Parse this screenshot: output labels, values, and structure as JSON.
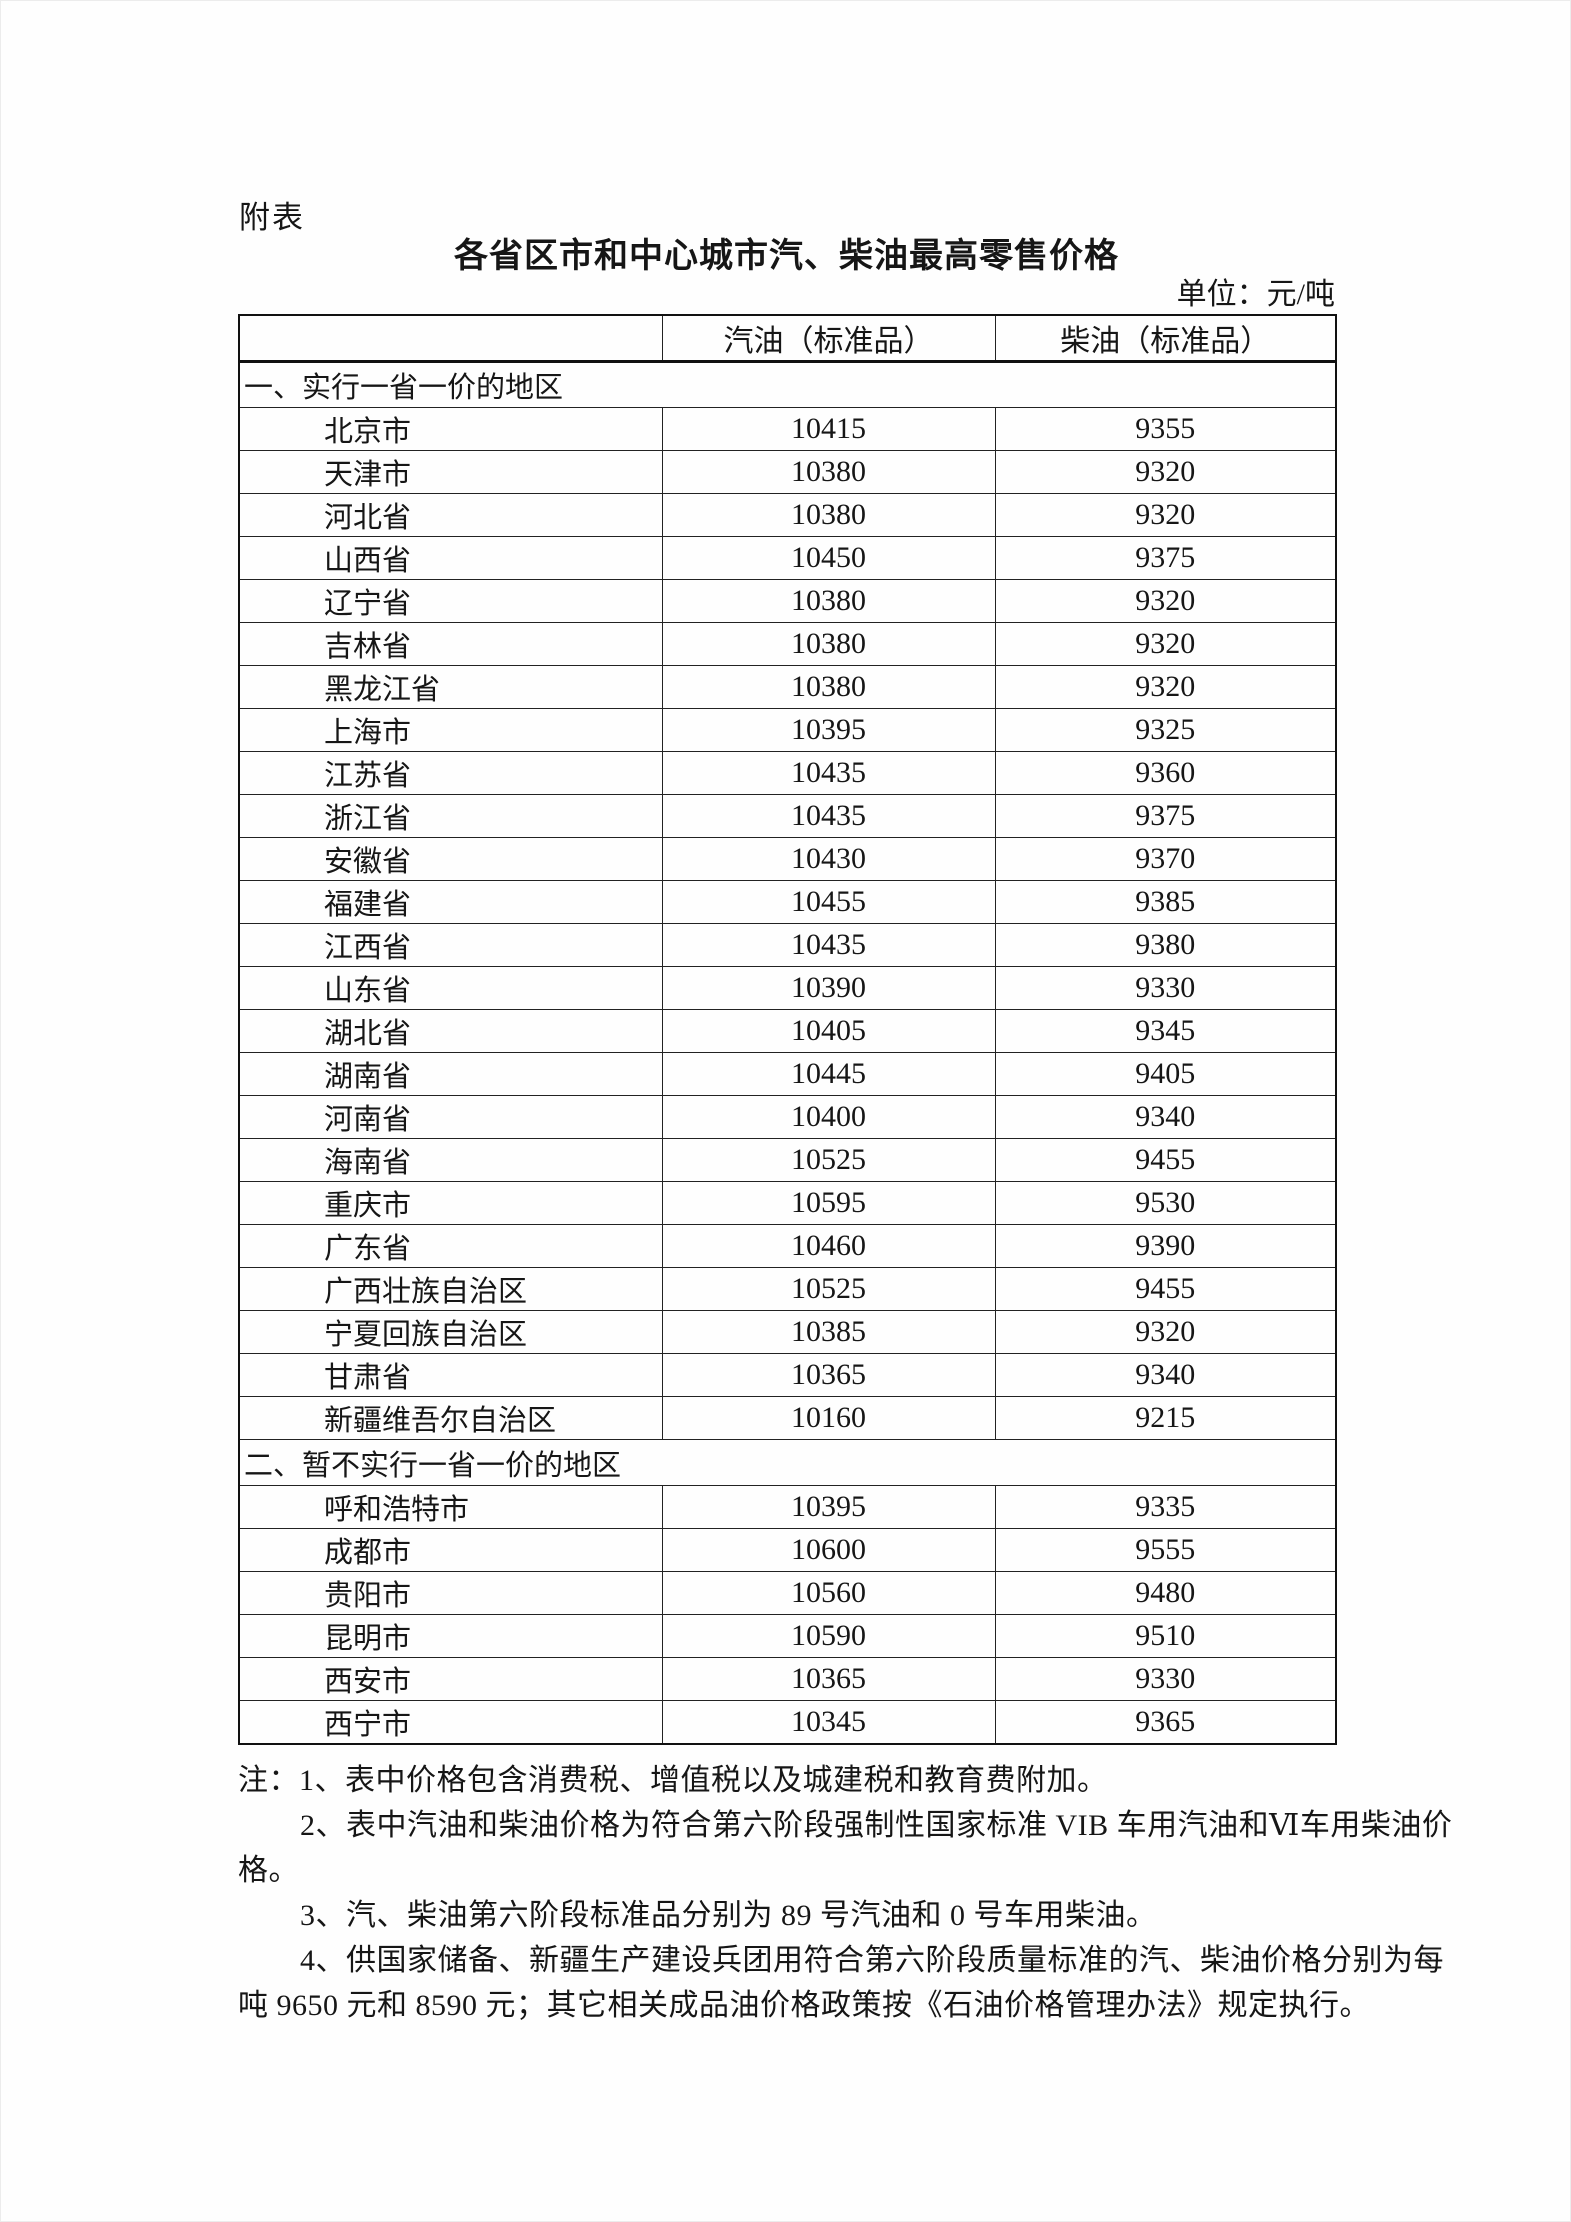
{
  "page": {
    "attachment_label": "附表",
    "title": "各省区市和中心城市汽、柴油最高零售价格",
    "unit_label": "单位：元/吨"
  },
  "table": {
    "columns": [
      "",
      "汽油（标准品）",
      "柴油（标准品）"
    ],
    "sections": [
      {
        "label": "一、实行一省一价的地区",
        "rows": [
          {
            "region": "北京市",
            "gasoline": 10415,
            "diesel": 9355
          },
          {
            "region": "天津市",
            "gasoline": 10380,
            "diesel": 9320
          },
          {
            "region": "河北省",
            "gasoline": 10380,
            "diesel": 9320
          },
          {
            "region": "山西省",
            "gasoline": 10450,
            "diesel": 9375
          },
          {
            "region": "辽宁省",
            "gasoline": 10380,
            "diesel": 9320
          },
          {
            "region": "吉林省",
            "gasoline": 10380,
            "diesel": 9320
          },
          {
            "region": "黑龙江省",
            "gasoline": 10380,
            "diesel": 9320
          },
          {
            "region": "上海市",
            "gasoline": 10395,
            "diesel": 9325
          },
          {
            "region": "江苏省",
            "gasoline": 10435,
            "diesel": 9360
          },
          {
            "region": "浙江省",
            "gasoline": 10435,
            "diesel": 9375
          },
          {
            "region": "安徽省",
            "gasoline": 10430,
            "diesel": 9370
          },
          {
            "region": "福建省",
            "gasoline": 10455,
            "diesel": 9385
          },
          {
            "region": "江西省",
            "gasoline": 10435,
            "diesel": 9380
          },
          {
            "region": "山东省",
            "gasoline": 10390,
            "diesel": 9330
          },
          {
            "region": "湖北省",
            "gasoline": 10405,
            "diesel": 9345
          },
          {
            "region": "湖南省",
            "gasoline": 10445,
            "diesel": 9405
          },
          {
            "region": "河南省",
            "gasoline": 10400,
            "diesel": 9340
          },
          {
            "region": "海南省",
            "gasoline": 10525,
            "diesel": 9455
          },
          {
            "region": "重庆市",
            "gasoline": 10595,
            "diesel": 9530
          },
          {
            "region": "广东省",
            "gasoline": 10460,
            "diesel": 9390
          },
          {
            "region": "广西壮族自治区",
            "gasoline": 10525,
            "diesel": 9455
          },
          {
            "region": "宁夏回族自治区",
            "gasoline": 10385,
            "diesel": 9320
          },
          {
            "region": "甘肃省",
            "gasoline": 10365,
            "diesel": 9340
          },
          {
            "region": "新疆维吾尔自治区",
            "gasoline": 10160,
            "diesel": 9215
          }
        ]
      },
      {
        "label": "二、暂不实行一省一价的地区",
        "rows": [
          {
            "region": "呼和浩特市",
            "gasoline": 10395,
            "diesel": 9335
          },
          {
            "region": "成都市",
            "gasoline": 10600,
            "diesel": 9555
          },
          {
            "region": "贵阳市",
            "gasoline": 10560,
            "diesel": 9480
          },
          {
            "region": "昆明市",
            "gasoline": 10590,
            "diesel": 9510
          },
          {
            "region": "西安市",
            "gasoline": 10365,
            "diesel": 9330
          },
          {
            "region": "西宁市",
            "gasoline": 10345,
            "diesel": 9365
          }
        ]
      }
    ]
  },
  "notes": {
    "lines": [
      {
        "text": "注：1、表中价格包含消费税、增值税以及城建税和教育费附加。",
        "indent": false
      },
      {
        "text": "2、表中汽油和柴油价格为符合第六阶段强制性国家标准 VIB 车用汽油和Ⅵ车用柴油价",
        "indent": true
      },
      {
        "text": "格。",
        "indent": false
      },
      {
        "text": "3、汽、柴油第六阶段标准品分别为 89 号汽油和 0 号车用柴油。",
        "indent": true
      },
      {
        "text": "4、供国家储备、新疆生产建设兵团用符合第六阶段质量标准的汽、柴油价格分别为每",
        "indent": true
      },
      {
        "text": "吨 9650 元和 8590 元；其它相关成品油价格政策按《石油价格管理办法》规定执行。",
        "indent": false
      }
    ]
  }
}
